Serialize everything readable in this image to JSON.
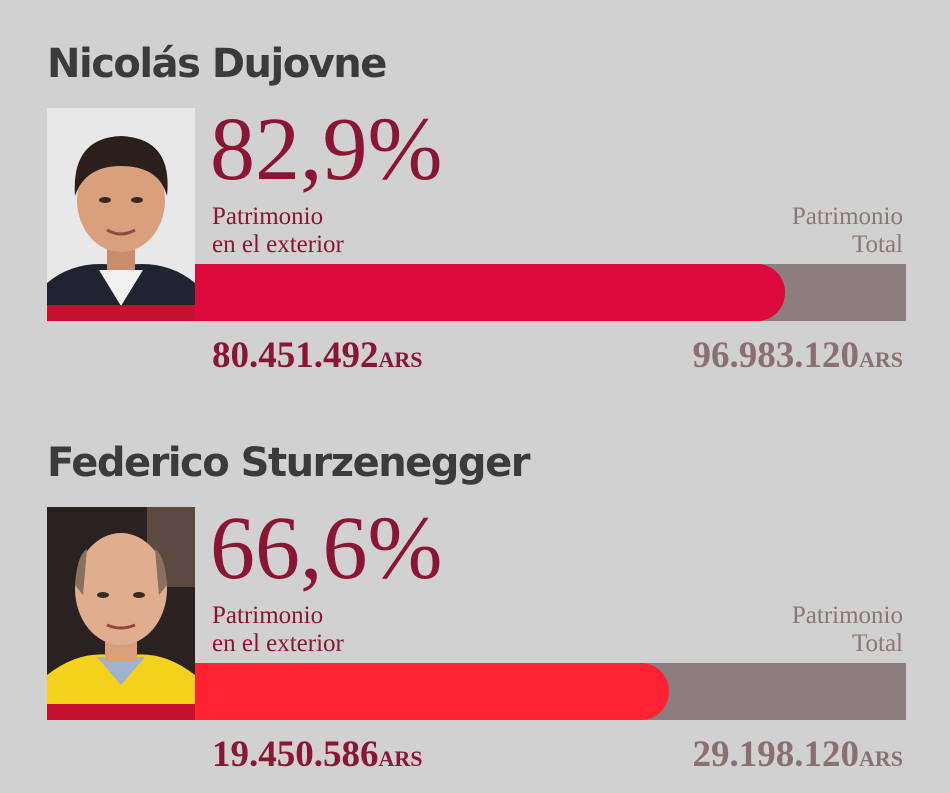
{
  "chart_data": [
    {
      "type": "bar",
      "name": "Nicolás Dujovne",
      "percent_label": "82,9%",
      "percent": 82.9,
      "series": [
        {
          "name": "Patrimonio en el exterior",
          "label_lines": [
            "Patrimonio",
            "en el exterior"
          ],
          "value": 80451492,
          "value_label": "80.451.492",
          "unit": "ARS"
        },
        {
          "name": "Patrimonio Total",
          "label_lines": [
            "Patrimonio",
            "Total"
          ],
          "value": 96983120,
          "value_label": "96.983.120",
          "unit": "ARS"
        }
      ],
      "fill_color": "#dc0a3a",
      "track_color": "#8c7e7e",
      "photo": "portrait-man-dark-hair-suit"
    },
    {
      "type": "bar",
      "name": "Federico Sturzenegger",
      "percent_label": "66,6%",
      "percent": 66.6,
      "series": [
        {
          "name": "Patrimonio en el exterior",
          "label_lines": [
            "Patrimonio",
            "en el exterior"
          ],
          "value": 19450586,
          "value_label": "19.450.586",
          "unit": "ARS"
        },
        {
          "name": "Patrimonio Total",
          "label_lines": [
            "Patrimonio",
            "Total"
          ],
          "value": 29198120,
          "value_label": "29.198.120",
          "unit": "ARS"
        }
      ],
      "fill_color": "#ff2233",
      "track_color": "#8c7e7e",
      "photo": "portrait-bald-man-yellow-jacket"
    }
  ],
  "colors": {
    "background": "#d1d1d1",
    "accent": "#8a1535",
    "name_text": "#3b3b3b",
    "total_text": "#8a7878",
    "left_bar": "#c4112f"
  }
}
